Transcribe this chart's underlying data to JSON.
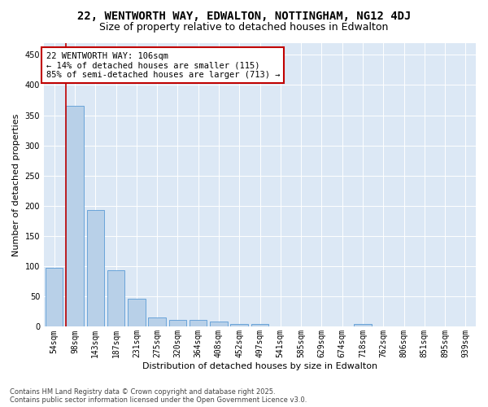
{
  "title": "22, WENTWORTH WAY, EDWALTON, NOTTINGHAM, NG12 4DJ",
  "subtitle": "Size of property relative to detached houses in Edwalton",
  "xlabel": "Distribution of detached houses by size in Edwalton",
  "ylabel": "Number of detached properties",
  "categories": [
    "54sqm",
    "98sqm",
    "143sqm",
    "187sqm",
    "231sqm",
    "275sqm",
    "320sqm",
    "364sqm",
    "408sqm",
    "452sqm",
    "497sqm",
    "541sqm",
    "585sqm",
    "629sqm",
    "674sqm",
    "718sqm",
    "762sqm",
    "806sqm",
    "851sqm",
    "895sqm",
    "939sqm"
  ],
  "values": [
    98,
    365,
    193,
    93,
    46,
    15,
    11,
    11,
    8,
    5,
    5,
    0,
    0,
    0,
    0,
    4,
    0,
    0,
    0,
    0,
    0
  ],
  "bar_color": "#b8d0e8",
  "bar_edge_color": "#5b9bd5",
  "highlight_line_color": "#c00000",
  "highlight_bar_index": 1,
  "annotation_text": "22 WENTWORTH WAY: 106sqm\n← 14% of detached houses are smaller (115)\n85% of semi-detached houses are larger (713) →",
  "annotation_box_facecolor": "#ffffff",
  "annotation_box_edgecolor": "#c00000",
  "ylim": [
    0,
    470
  ],
  "yticks": [
    0,
    50,
    100,
    150,
    200,
    250,
    300,
    350,
    400,
    450
  ],
  "grid_color": "#ffffff",
  "background_color": "#dce8f5",
  "footer_line1": "Contains HM Land Registry data © Crown copyright and database right 2025.",
  "footer_line2": "Contains public sector information licensed under the Open Government Licence v3.0.",
  "title_fontsize": 10,
  "subtitle_fontsize": 9,
  "xlabel_fontsize": 8,
  "ylabel_fontsize": 8,
  "tick_fontsize": 7,
  "annotation_fontsize": 7.5,
  "footer_fontsize": 6
}
